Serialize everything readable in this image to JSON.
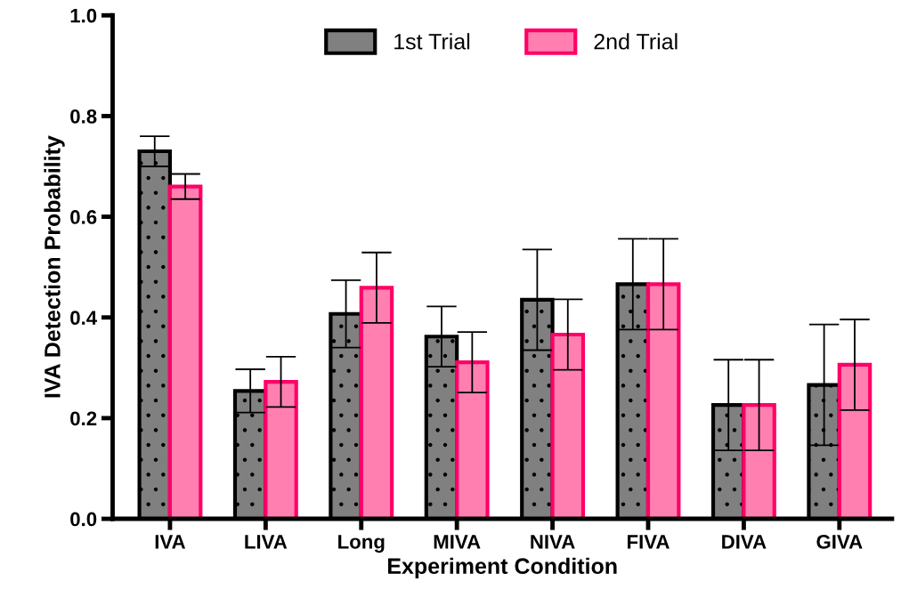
{
  "chart_data": {
    "type": "bar",
    "xlabel": "Experiment Condition",
    "ylabel": "IVA Detection Probability",
    "categories": [
      "IVA",
      "LIVA",
      "Long",
      "MIVA",
      "NIVA",
      "FIVA",
      "DIVA",
      "GIVA"
    ],
    "series": [
      {
        "name": "1st Trial",
        "color": "#808080",
        "values": [
          0.73,
          0.254,
          0.407,
          0.362,
          0.435,
          0.466,
          0.226,
          0.266
        ],
        "errors": [
          0.03,
          0.043,
          0.067,
          0.06,
          0.1,
          0.09,
          0.09,
          0.12
        ]
      },
      {
        "name": "2nd Trial",
        "color": "#ff80b0",
        "values": [
          0.66,
          0.272,
          0.459,
          0.311,
          0.366,
          0.466,
          0.226,
          0.306
        ],
        "errors": [
          0.025,
          0.05,
          0.07,
          0.06,
          0.07,
          0.09,
          0.09,
          0.09
        ]
      }
    ],
    "ylim": [
      0,
      1.0
    ],
    "yticks": [
      {
        "value": 0,
        "label": "0.0"
      },
      {
        "value": 0.2,
        "label": "0.2"
      },
      {
        "value": 0.4,
        "label": "0.4"
      },
      {
        "value": 0.6,
        "label": "0.6"
      },
      {
        "value": 0.8,
        "label": "0.8"
      },
      {
        "value": 1.0,
        "label": "1.0"
      }
    ],
    "grid": false,
    "legend": "top"
  }
}
